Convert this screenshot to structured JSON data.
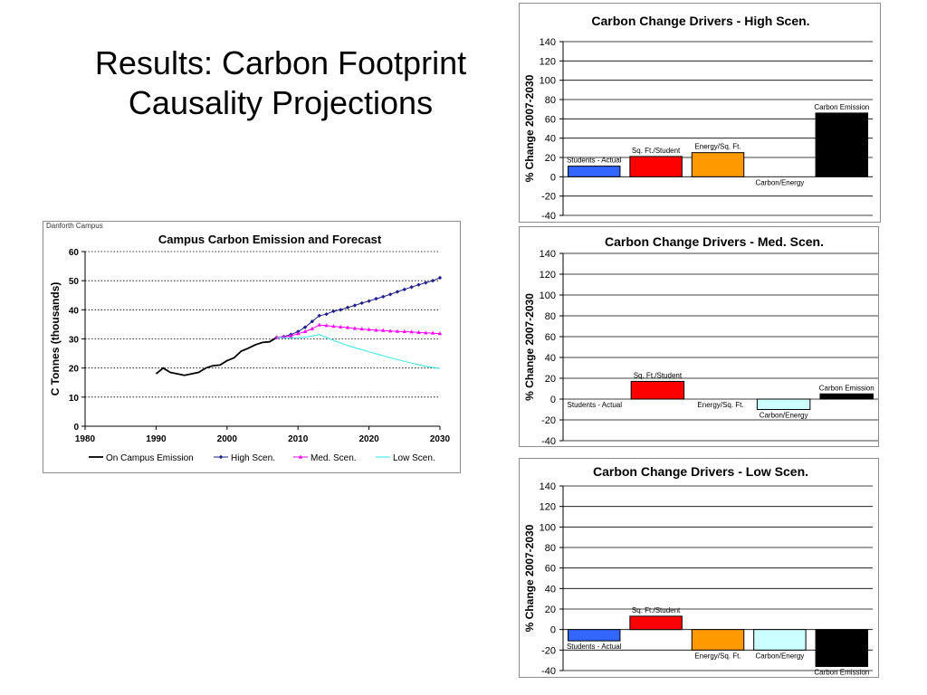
{
  "slide": {
    "title_line1": "Results: Carbon Footprint",
    "title_line2": "Causality Projections"
  },
  "chart_data": [
    {
      "type": "line",
      "panel_label": "Danforth Campus",
      "title": "Campus Carbon Emission and Forecast",
      "xlabel": "",
      "ylabel": "C Tonnes (thousands)",
      "xlim": [
        1980,
        2030
      ],
      "ylim": [
        0,
        60
      ],
      "xticks": [
        1980,
        1990,
        2000,
        2010,
        2020,
        2030
      ],
      "yticks": [
        0,
        10,
        20,
        30,
        40,
        50,
        60
      ],
      "grid": true,
      "legend_position": "bottom",
      "series": [
        {
          "name": "On Campus Emission",
          "color": "#000000",
          "marker": "none",
          "x": [
            1990,
            1991,
            1992,
            1993,
            1994,
            1995,
            1996,
            1997,
            1998,
            1999,
            2000,
            2001,
            2002,
            2003,
            2004,
            2005,
            2006,
            2007
          ],
          "y": [
            18,
            20,
            18.5,
            18,
            17.5,
            18,
            18.5,
            20,
            20.8,
            21,
            22.5,
            23.5,
            25.8,
            26.8,
            28,
            28.8,
            29,
            30.5
          ]
        },
        {
          "name": "High Scen.",
          "color": "#1f1f8f",
          "marker": "diamond",
          "x": [
            2007,
            2008,
            2009,
            2010,
            2011,
            2012,
            2013,
            2014,
            2015,
            2016,
            2017,
            2018,
            2019,
            2020,
            2021,
            2022,
            2023,
            2024,
            2025,
            2026,
            2027,
            2028,
            2029,
            2030
          ],
          "y": [
            30.5,
            30.8,
            31.5,
            32.5,
            34,
            36,
            38,
            38.5,
            39.5,
            40,
            40.8,
            41.5,
            42.3,
            43,
            43.8,
            44.5,
            45.3,
            46.2,
            47,
            47.8,
            48.6,
            49.3,
            50,
            51
          ]
        },
        {
          "name": "Med. Scen.",
          "color": "#ff00ff",
          "marker": "triangle",
          "x": [
            2007,
            2008,
            2009,
            2010,
            2011,
            2012,
            2013,
            2014,
            2015,
            2016,
            2017,
            2018,
            2019,
            2020,
            2021,
            2022,
            2023,
            2024,
            2025,
            2026,
            2027,
            2028,
            2029,
            2030
          ],
          "y": [
            30.5,
            30.7,
            31,
            31.8,
            32.5,
            33.5,
            34.8,
            34.6,
            34.3,
            34.1,
            33.9,
            33.6,
            33.4,
            33.2,
            33.0,
            32.9,
            32.7,
            32.6,
            32.5,
            32.4,
            32.2,
            32.1,
            32.0,
            31.8
          ]
        },
        {
          "name": "Low Scen.",
          "color": "#33e6e6",
          "marker": "none",
          "x": [
            2007,
            2008,
            2009,
            2010,
            2011,
            2012,
            2013,
            2014,
            2015,
            2016,
            2017,
            2018,
            2019,
            2020,
            2021,
            2022,
            2023,
            2024,
            2025,
            2026,
            2027,
            2028,
            2029,
            2030
          ],
          "y": [
            30.5,
            30.4,
            30.3,
            30.4,
            30.6,
            31,
            31.5,
            30.5,
            29.5,
            28.6,
            27.7,
            27,
            26.3,
            25.6,
            24.9,
            24.2,
            23.5,
            22.9,
            22.3,
            21.7,
            21.1,
            20.6,
            20.2,
            19.8
          ]
        }
      ]
    },
    {
      "type": "bar",
      "title": "Carbon Change Drivers - High Scen.",
      "ylabel": "% Change 2007-2030",
      "ylim": [
        -40,
        140
      ],
      "yticks": [
        -40,
        -20,
        0,
        20,
        40,
        60,
        80,
        100,
        120,
        140
      ],
      "grid": true,
      "categories": [
        "Students - Actual",
        "Sq. Ft./Student",
        "Energy/Sq. Ft.",
        "Carbon/Energy",
        "Carbon Emission"
      ],
      "values": [
        11,
        21,
        25,
        0,
        66
      ],
      "colors": [
        "#3366ff",
        "#ff0000",
        "#ff9900",
        "#ccffff",
        "#000000"
      ]
    },
    {
      "type": "bar",
      "title": "Carbon Change Drivers - Med. Scen.",
      "ylabel": "% Change 2007-2030",
      "ylim": [
        -40,
        140
      ],
      "yticks": [
        -40,
        -20,
        0,
        20,
        40,
        60,
        80,
        100,
        120,
        140
      ],
      "grid": true,
      "categories": [
        "Students - Actual",
        "Sq. Ft./Student",
        "Energy/Sq. Ft.",
        "Carbon/Energy",
        "Carbon Emission"
      ],
      "values": [
        0,
        17,
        0,
        -10,
        5
      ],
      "colors": [
        "#3366ff",
        "#ff0000",
        "#ff9900",
        "#ccffff",
        "#000000"
      ]
    },
    {
      "type": "bar",
      "title": "Carbon Change Drivers - Low Scen.",
      "ylabel": "% Change 2007-2030",
      "ylim": [
        -40,
        140
      ],
      "yticks": [
        -40,
        -20,
        0,
        20,
        40,
        60,
        80,
        100,
        120,
        140
      ],
      "grid": true,
      "categories": [
        "Students - Actual",
        "Sq. Ft./Student",
        "Energy/Sq. Ft.",
        "Carbon/Energy",
        "Carbon Emission"
      ],
      "values": [
        -11,
        13,
        -20,
        -20,
        -36
      ],
      "colors": [
        "#3366ff",
        "#ff0000",
        "#ff9900",
        "#ccffff",
        "#000000"
      ]
    }
  ]
}
